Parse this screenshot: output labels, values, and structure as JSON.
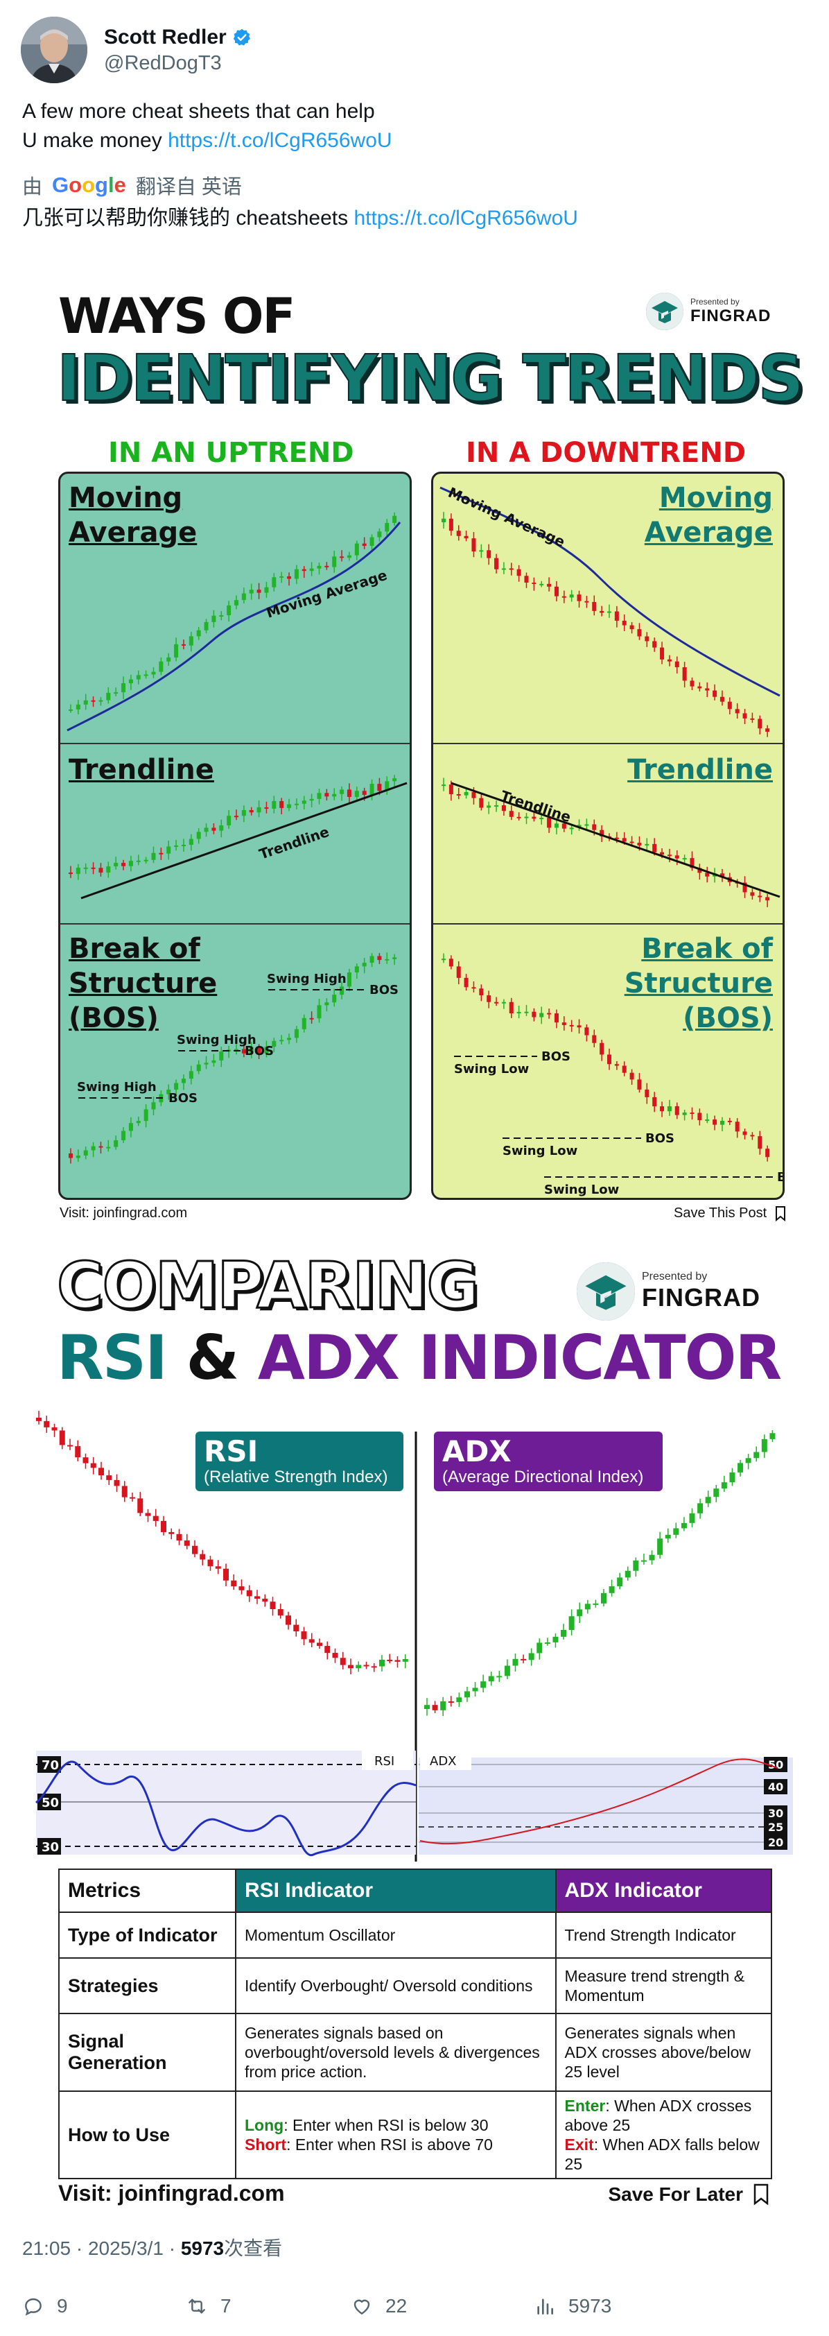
{
  "tweet": {
    "display_name": "Scott Redler",
    "handle": "@RedDogT3",
    "text_line1": "A few more cheat sheets that can help",
    "text_line2_prefix": "U make money ",
    "link": "https://t.co/lCgR656woU",
    "translate_prefix": "由",
    "translate_brand": "Google",
    "translate_suffix": "翻译自 英语",
    "translated_prefix": "几张可以帮助你赚钱的 cheatsheets ",
    "translated_link": "https://t.co/lCgR656woU",
    "timestamp": "21:05 · 2025/3/1 · ",
    "views_count": "5973",
    "views_label": "次查看",
    "actions": {
      "replies": "9",
      "reposts": "7",
      "likes": "22",
      "views": "5973"
    }
  },
  "infographic1": {
    "title_line1": "WAYS OF",
    "title_line2": "IDENTIFYING TRENDS",
    "brand_pre": "Presented by",
    "brand_name": "FINGRAD",
    "watermark": "FINGRAD",
    "uptrend_label": "IN AN UPTREND",
    "downtrend_label": "IN A DOWNTREND",
    "panels_up": {
      "ma_title_1": "Moving",
      "ma_title_2": "Average",
      "ma_line_label": "Moving Average",
      "tl_title": "Trendline",
      "tl_line_label": "Trendline",
      "bos_title_1": "Break of",
      "bos_title_2": "Structure",
      "bos_title_3": "(BOS)",
      "swing_high": "Swing High",
      "bos": "BOS"
    },
    "panels_down": {
      "ma_title_1": "Moving",
      "ma_title_2": "Average",
      "ma_line_label": "Moving Average",
      "tl_title": "Trendline",
      "tl_line_label": "Trendline",
      "bos_title_1": "Break of",
      "bos_title_2": "Structure",
      "bos_title_3": "(BOS)",
      "swing_low": "Swing Low",
      "bos": "BOS"
    },
    "footer_left": "Visit: joinfingrad.com",
    "footer_right": "Save This Post"
  },
  "infographic2": {
    "title_line1": "COMPARING",
    "title_rsi": "RSI",
    "title_amp": " & ",
    "title_adx": "ADX INDICATOR",
    "brand_pre": "Presented by",
    "brand_name": "FINGRAD",
    "rsi_pill_title": "RSI",
    "rsi_pill_sub": "(Relative Strength Index)",
    "adx_pill_title": "ADX",
    "adx_pill_sub": "(Average Directional Index)",
    "rsi_tag": "RSI",
    "adx_tag": "ADX",
    "rsi_levels": [
      "70",
      "50",
      "30"
    ],
    "adx_levels": [
      "50",
      "40",
      "30",
      "25",
      "20"
    ],
    "table": {
      "headers": [
        "Metrics",
        "RSI Indicator",
        "ADX Indicator"
      ],
      "rows": [
        {
          "metric": "Type of Indicator",
          "rsi": "Momentum Oscillator",
          "adx": "Trend Strength Indicator"
        },
        {
          "metric": "Strategies",
          "rsi": "Identify Overbought/ Oversold conditions",
          "adx": "Measure trend strength & Momentum"
        },
        {
          "metric": "Signal Generation",
          "rsi": "Generates signals based on overbought/oversold levels & divergences from price action.",
          "adx": "Generates signals when ADX crosses above/below 25 level"
        },
        {
          "metric": "How to Use",
          "rsi_long_kw": "Long",
          "rsi_long": ": Enter when RSI is below 30",
          "rsi_short_kw": "Short",
          "rsi_short": ": Enter when RSI is above 70",
          "adx_enter_kw": "Enter",
          "adx_enter": ": When ADX crosses above 25",
          "adx_exit_kw": "Exit",
          "adx_exit": ": When ADX falls below 25"
        }
      ]
    },
    "footer_left": "Visit: joinfingrad.com",
    "footer_right": "Save For Later"
  },
  "colors": {
    "teal": "#0d7679",
    "purple": "#6e1d96",
    "green_candle": "#21b427",
    "red_candle": "#d8151f",
    "uptrend_green": "#19b31d",
    "downtrend_red": "#e0141d",
    "link_blue": "#1d9bf0"
  }
}
